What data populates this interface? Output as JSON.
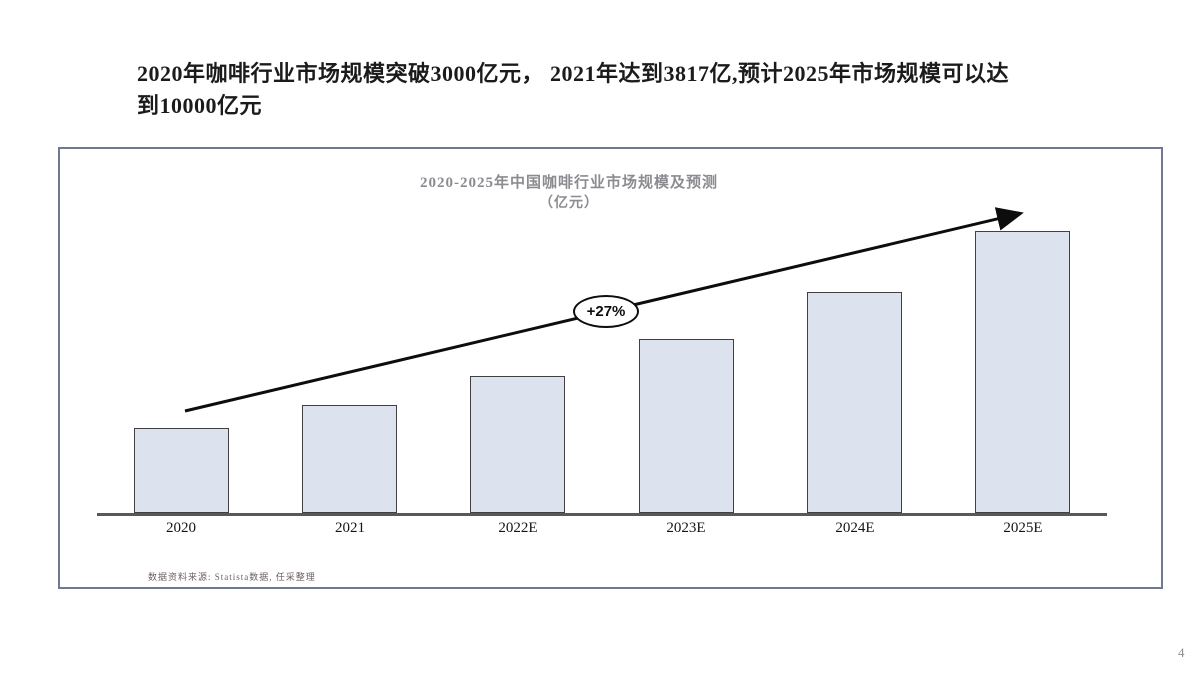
{
  "page": {
    "heading_line1": "2020年咖啡行业市场规模突破3000亿元， 2021年达到3817亿,预计2025年市场规模可以达",
    "heading_line2": "到10000亿元",
    "page_number": "4"
  },
  "chart": {
    "title": "2020-2025年中国咖啡行业市场规模及预测",
    "subtitle": "（亿元）",
    "growth_label": "+27%",
    "source": "数据资料来源: Statista数据, 任采整理"
  },
  "chart_data": {
    "type": "bar",
    "title": "2020-2025年中国咖啡行业市场规模及预测",
    "unit_label": "亿元",
    "categories": [
      "2020",
      "2021",
      "2022E",
      "2023E",
      "2024E",
      "2025E"
    ],
    "values": [
      3000,
      3817,
      4850,
      6160,
      7820,
      10000
    ],
    "ylim": [
      0,
      10600
    ],
    "annotation": "+27%",
    "legend": [],
    "grid": false,
    "bar_fill": "#dce3ee",
    "bar_border": "#404040"
  }
}
